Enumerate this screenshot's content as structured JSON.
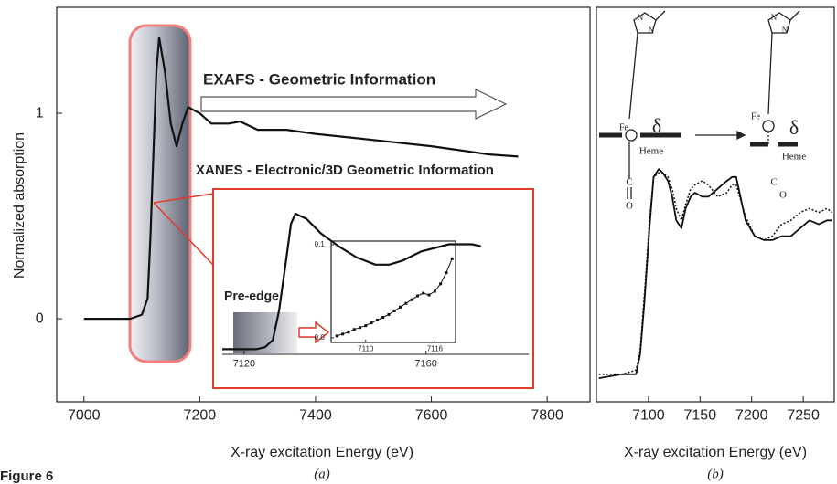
{
  "figure_label": "Figure 6",
  "diagram_labels": [
    "N",
    "N",
    "Fe",
    "δ",
    "Heme",
    "C",
    "O",
    "N",
    "N",
    "Fe",
    "δ",
    "Heme",
    "C",
    "O"
  ],
  "chart_data": [
    {
      "type": "line",
      "caption": "(a)",
      "xlabel": "X-ray excitation Energy (eV)",
      "ylabel": "Normalized absorption",
      "annotations": [
        "EXAFS - Geometric Information",
        "XANES - Electronic/3D Geometric Information"
      ],
      "color": "#111111",
      "x": [
        7000,
        7080,
        7100,
        7110,
        7115,
        7120,
        7125,
        7130,
        7140,
        7150,
        7160,
        7170,
        7180,
        7200,
        7220,
        7250,
        7270,
        7300,
        7350,
        7400,
        7500,
        7600,
        7700,
        7750
      ],
      "values": [
        0,
        0,
        0.02,
        0.1,
        0.4,
        0.8,
        1.2,
        1.37,
        1.2,
        0.95,
        0.84,
        0.95,
        1.03,
        1.0,
        0.95,
        0.95,
        0.96,
        0.92,
        0.92,
        0.9,
        0.87,
        0.84,
        0.8,
        0.79
      ],
      "xlim": [
        6953,
        7874
      ],
      "ylim": [
        -0.404,
        1.516
      ],
      "xticks": [
        7000,
        7200,
        7400,
        7600,
        7800
      ],
      "yticks": [
        0,
        1
      ]
    },
    {
      "type": "line",
      "annotation": "Pre-edge",
      "color": "#111111",
      "x": [
        7115.2,
        7122.6,
        7124.6,
        7126.3,
        7127.7,
        7129.1,
        7130.3,
        7131.3,
        7133.7,
        7136.8,
        7140.8,
        7144.8,
        7148.9,
        7151.9,
        7154.9,
        7159.0,
        7165.1,
        7170.1,
        7172.1
      ],
      "values": [
        0,
        0,
        0.02,
        0.09,
        0.38,
        0.83,
        1.23,
        1.33,
        1.28,
        1.14,
        1.01,
        0.9,
        0.83,
        0.83,
        0.87,
        0.96,
        1.03,
        1.03,
        1.01
      ],
      "xlim": [
        7115.2,
        7182.6
      ],
      "ylim": [
        -0.05,
        1.5
      ],
      "xticks": [
        7120,
        7160
      ]
    },
    {
      "type": "line",
      "markers": true,
      "color": "#111111",
      "x": [
        7107.5,
        7108,
        7108.5,
        7109,
        7109.5,
        7110,
        7110.5,
        7111,
        7111.5,
        7112,
        7112.5,
        7113,
        7113.5,
        7114,
        7114.5,
        7115,
        7115.5,
        7116,
        7116.5,
        7117,
        7117.5
      ],
      "values": [
        0.002,
        0.004,
        0.006,
        0.009,
        0.011,
        0.013,
        0.016,
        0.019,
        0.022,
        0.025,
        0.029,
        0.033,
        0.037,
        0.041,
        0.045,
        0.048,
        0.046,
        0.05,
        0.058,
        0.07,
        0.085
      ],
      "xlim": [
        7107,
        7117.8
      ],
      "ylim": [
        -0.005,
        0.104
      ],
      "xticks": [
        7110,
        7116
      ],
      "yticks": [
        {
          "value": 0,
          "label": "0.0"
        },
        0.1
      ]
    },
    {
      "type": "line",
      "caption": "(b)",
      "xlabel": "X-ray excitation Energy (eV)",
      "x": [
        7052,
        7074,
        7088,
        7092,
        7096,
        7101,
        7105,
        7110,
        7114,
        7119,
        7123,
        7127,
        7132,
        7136,
        7141,
        7145,
        7152,
        7158,
        7167,
        7176,
        7181,
        7185,
        7194,
        7203,
        7212,
        7220,
        7229,
        7238,
        7247,
        7256,
        7265,
        7273,
        7278
      ],
      "series": [
        {
          "color": "#111111",
          "line_style": "solid",
          "values": [
            0.06,
            0.07,
            0.07,
            0.12,
            0.25,
            0.44,
            0.57,
            0.59,
            0.58,
            0.56,
            0.52,
            0.46,
            0.44,
            0.49,
            0.52,
            0.53,
            0.52,
            0.52,
            0.54,
            0.56,
            0.57,
            0.57,
            0.46,
            0.42,
            0.41,
            0.41,
            0.42,
            0.42,
            0.44,
            0.46,
            0.45,
            0.46,
            0.46
          ]
        },
        {
          "color": "#111111",
          "line_style": "dotted",
          "values": [
            0.07,
            0.07,
            0.08,
            0.13,
            0.27,
            0.46,
            0.57,
            0.58,
            0.58,
            0.57,
            0.54,
            0.49,
            0.46,
            0.5,
            0.54,
            0.55,
            0.56,
            0.55,
            0.52,
            0.53,
            0.55,
            0.55,
            0.47,
            0.42,
            0.41,
            0.42,
            0.45,
            0.46,
            0.48,
            0.49,
            0.48,
            0.49,
            0.48
          ]
        }
      ],
      "xlim": [
        7049.6,
        7280
      ],
      "ylim": [
        0,
        1
      ],
      "xticks": [
        7100,
        7150,
        7200,
        7250
      ]
    }
  ]
}
